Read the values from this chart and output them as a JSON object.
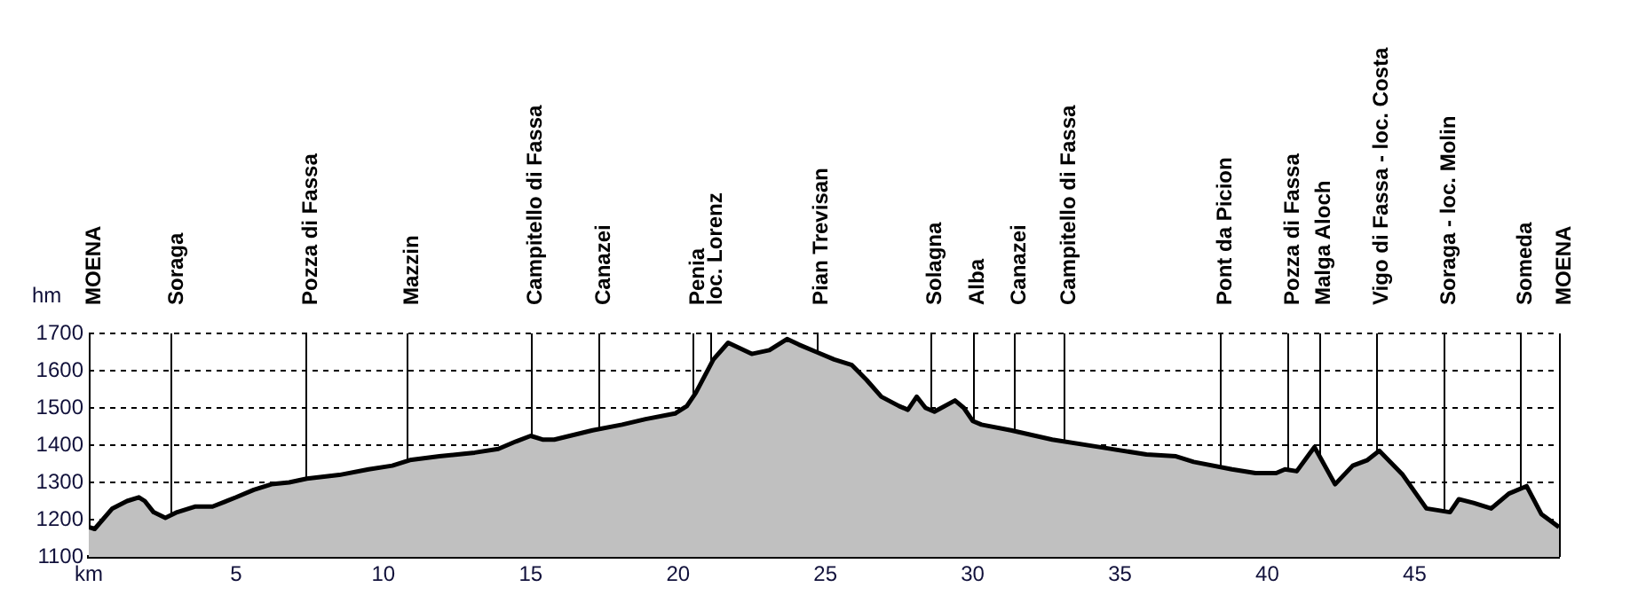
{
  "chart_data": {
    "type": "area",
    "ylabel": "hm",
    "x": [
      0,
      0.2,
      0.8,
      1.3,
      1.7,
      1.9,
      2.2,
      2.6,
      3.0,
      3.6,
      4.2,
      5.0,
      5.6,
      6.2,
      6.8,
      7.4,
      8.5,
      9.5,
      10.3,
      10.9,
      11.9,
      13.1,
      13.9,
      14.5,
      15.0,
      15.4,
      15.8,
      17.1,
      18.1,
      18.9,
      19.9,
      20.3,
      20.6,
      21.2,
      21.7,
      22.5,
      23.1,
      23.7,
      24.1,
      24.7,
      25.3,
      25.9,
      26.4,
      26.9,
      27.5,
      27.8,
      28.1,
      28.4,
      28.7,
      29.4,
      29.7,
      30.0,
      30.3,
      31.3,
      32.7,
      34.3,
      35.9,
      36.9,
      37.5,
      38.8,
      39.6,
      40.3,
      40.6,
      41.0,
      41.6,
      42.3,
      42.9,
      43.4,
      43.8,
      44.6,
      45.4,
      46.2,
      46.5,
      47.0,
      47.6,
      48.2,
      48.8,
      49.3,
      49.9
    ],
    "series": [
      {
        "color": "#c0c0c0",
        "values": [
          1180,
          1175,
          1230,
          1250,
          1260,
          1250,
          1220,
          1205,
          1220,
          1235,
          1235,
          1260,
          1280,
          1295,
          1300,
          1310,
          1320,
          1335,
          1345,
          1360,
          1370,
          1380,
          1390,
          1410,
          1425,
          1415,
          1415,
          1440,
          1455,
          1470,
          1485,
          1505,
          1540,
          1630,
          1675,
          1645,
          1655,
          1685,
          1670,
          1650,
          1630,
          1615,
          1575,
          1530,
          1505,
          1495,
          1530,
          1500,
          1490,
          1520,
          1500,
          1465,
          1455,
          1440,
          1415,
          1395,
          1375,
          1370,
          1355,
          1335,
          1325,
          1325,
          1335,
          1330,
          1395,
          1295,
          1345,
          1360,
          1385,
          1320,
          1230,
          1220,
          1255,
          1245,
          1230,
          1270,
          1290,
          1215,
          1180
        ]
      }
    ],
    "xlim": [
      0,
      49.9
    ],
    "xticks": [
      {
        "value": 0,
        "label": "km"
      },
      5,
      10,
      15,
      20,
      25,
      30,
      35,
      40,
      45
    ],
    "ylim": [
      1100,
      1700
    ],
    "yticks": [
      1100,
      1200,
      1300,
      1400,
      1500,
      1600,
      1700
    ],
    "grid": "y",
    "line_style": "solid",
    "ref_lines": [
      {
        "axis": "x",
        "value": 0,
        "label": "MOENA"
      },
      {
        "axis": "x",
        "value": 2.8,
        "label": "Soraga"
      },
      {
        "axis": "x",
        "value": 7.35,
        "label": "Pozza di Fassa"
      },
      {
        "axis": "x",
        "value": 10.8,
        "label": "Mazzin"
      },
      {
        "axis": "x",
        "value": 15.0,
        "label": "Campitello di Fassa"
      },
      {
        "axis": "x",
        "value": 17.3,
        "label": "Canazei"
      },
      {
        "axis": "x",
        "value": 20.5,
        "label": "Penia"
      },
      {
        "axis": "x",
        "value": 21.1,
        "label": "loc. Lorenz"
      },
      {
        "axis": "x",
        "value": 24.7,
        "label": "Pian Trevisan"
      },
      {
        "axis": "x",
        "value": 28.55,
        "label": "Solagna"
      },
      {
        "axis": "x",
        "value": 30.0,
        "label": "Alba"
      },
      {
        "axis": "x",
        "value": 31.4,
        "label": "Canazei"
      },
      {
        "axis": "x",
        "value": 33.1,
        "label": "Campitello di Fassa"
      },
      {
        "axis": "x",
        "value": 38.4,
        "label": "Pont da Picion"
      },
      {
        "axis": "x",
        "value": 40.7,
        "label": "Pozza di Fassa"
      },
      {
        "axis": "x",
        "value": 41.75,
        "label": "Malga Aloch"
      },
      {
        "axis": "x",
        "value": 43.7,
        "label": "Vigo di Fassa - loc. Costa"
      },
      {
        "axis": "x",
        "value": 46.0,
        "label": "Soraga - loc. Molin"
      },
      {
        "axis": "x",
        "value": 48.6,
        "label": "Someda"
      },
      {
        "axis": "x",
        "value": 49.9,
        "label": "MOENA"
      }
    ]
  }
}
